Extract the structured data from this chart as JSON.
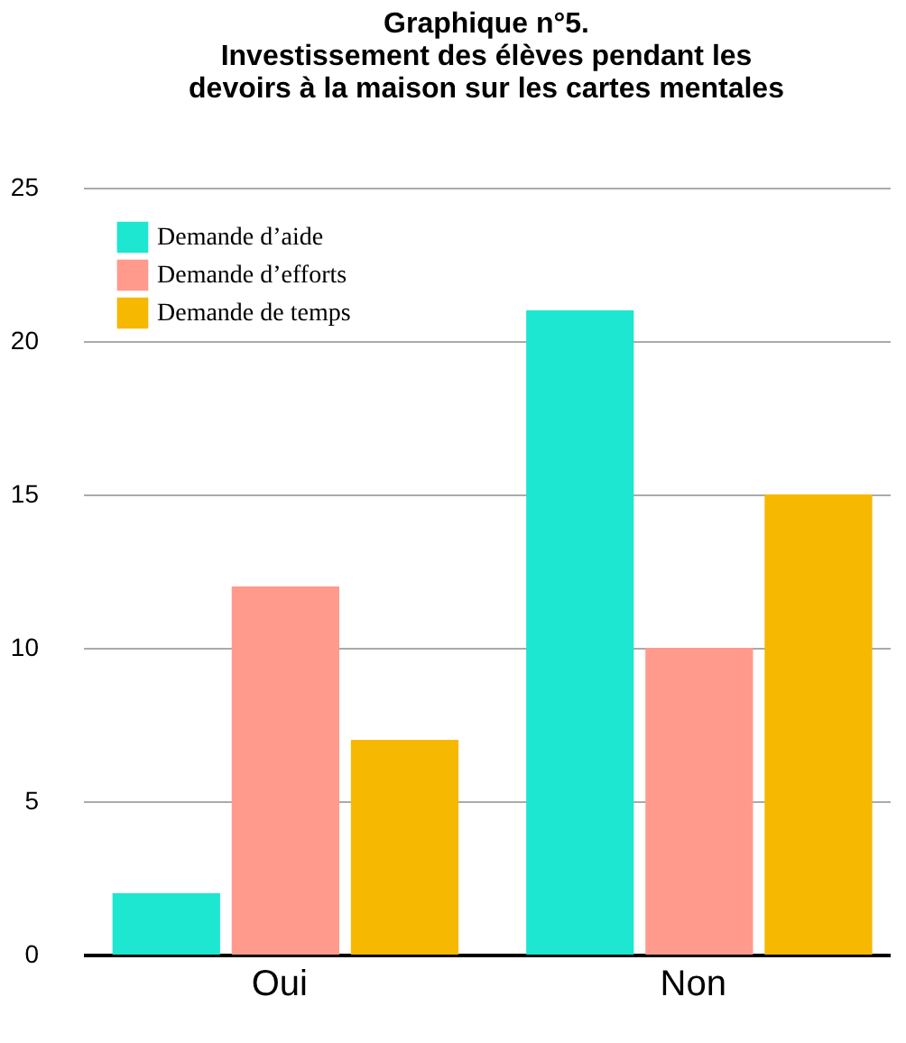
{
  "chart_data": {
    "type": "bar",
    "title": "Graphique n°5.\nInvestissement des élèves pendant les\ndevoirs à la maison sur les cartes mentales",
    "categories": [
      "Oui",
      "Non"
    ],
    "series": [
      {
        "name": "Demande d’aide",
        "color": "#1de6d1",
        "values": [
          2,
          21
        ]
      },
      {
        "name": "Demande d’efforts",
        "color": "#ff9a8d",
        "values": [
          12,
          10
        ]
      },
      {
        "name": "Demande de temps",
        "color": "#f6b800",
        "values": [
          7,
          15
        ]
      }
    ],
    "ylim": [
      0,
      25
    ],
    "yticks": [
      0,
      5,
      10,
      15,
      20,
      25
    ],
    "grid": "y",
    "legend": "top left"
  }
}
